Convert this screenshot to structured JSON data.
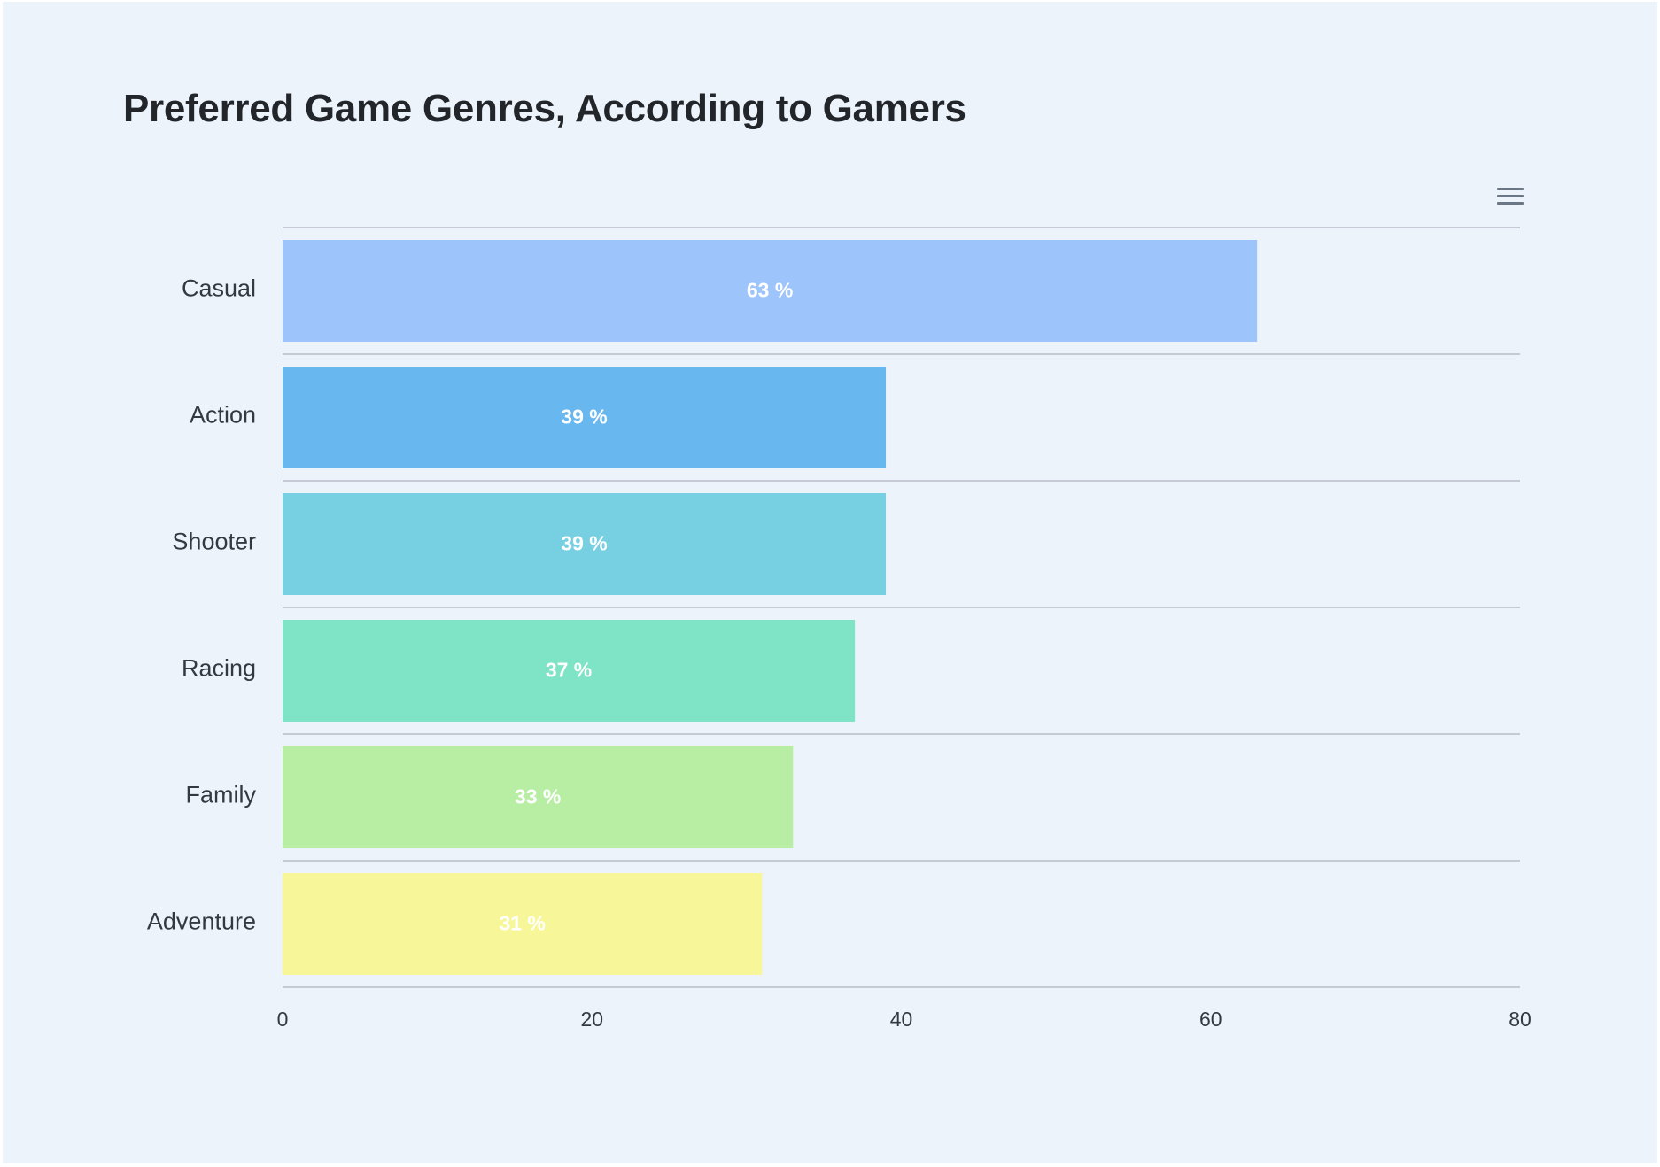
{
  "chart_data": {
    "type": "bar",
    "orientation": "horizontal",
    "title": "Preferred Game Genres, According to Gamers",
    "categories": [
      "Casual",
      "Action",
      "Shooter",
      "Racing",
      "Family",
      "Adventure"
    ],
    "values": [
      63,
      39,
      39,
      37,
      33,
      31
    ],
    "data_labels": [
      "63 %",
      "39 %",
      "39 %",
      "37 %",
      "33 %",
      "31 %"
    ],
    "colors": [
      "#9dc5fc",
      "#69b7ef",
      "#76d0e2",
      "#7fe3c6",
      "#b8eea4",
      "#f7f79a"
    ],
    "xlim": [
      0,
      80
    ],
    "x_ticks": [
      0,
      20,
      40,
      60,
      80
    ],
    "xlabel": "",
    "ylabel": "",
    "grid": true,
    "legend": false
  },
  "toolbar": {
    "menu_icon": "hamburger-menu-icon"
  }
}
